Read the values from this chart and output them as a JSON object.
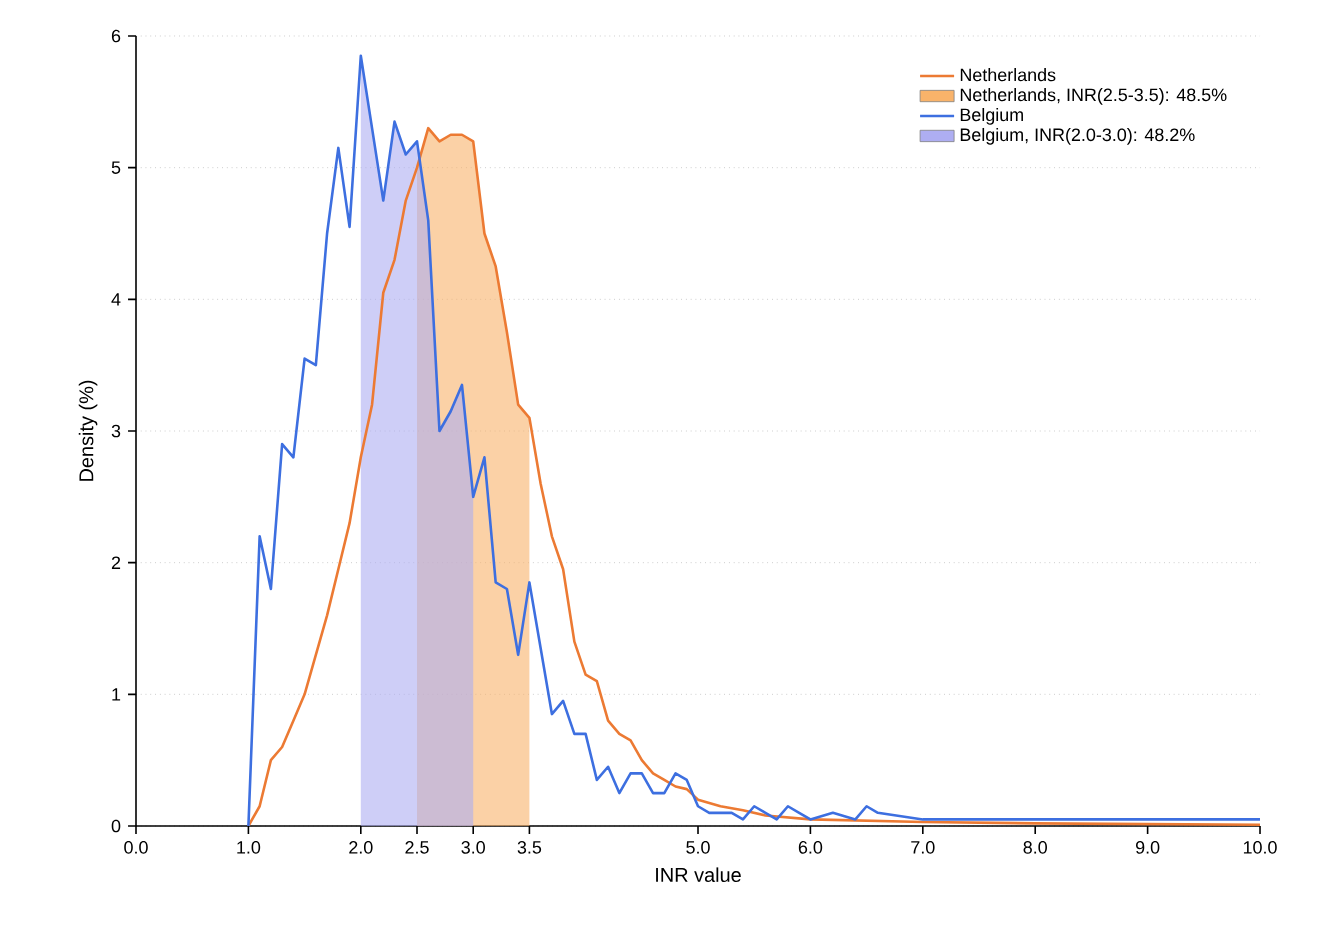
{
  "chart_data": {
    "type": "line",
    "xlabel": "INR value",
    "ylabel": "Density (%)",
    "xlim": [
      0,
      10
    ],
    "ylim": [
      0,
      6
    ],
    "xticks": [
      {
        "value": 0,
        "label": "0.0"
      },
      {
        "value": 1,
        "label": "1.0"
      },
      {
        "value": 2,
        "label": "2.0"
      },
      {
        "value": 2.5,
        "label": "2.5"
      },
      {
        "value": 3,
        "label": "3.0"
      },
      {
        "value": 3.5,
        "label": "3.5"
      },
      {
        "value": 5,
        "label": "5.0"
      },
      {
        "value": 6,
        "label": "6.0"
      },
      {
        "value": 7,
        "label": "7.0"
      },
      {
        "value": 8,
        "label": "8.0"
      },
      {
        "value": 9,
        "label": "9.0"
      },
      {
        "value": 10,
        "label": "10.0"
      }
    ],
    "yticks": [
      0,
      1,
      2,
      3,
      4,
      5,
      6
    ],
    "grid": "y",
    "legend": "top right",
    "series": [
      {
        "name": "Netherlands",
        "color": "#ec7a33",
        "x": [
          1.0,
          1.1,
          1.2,
          1.3,
          1.4,
          1.5,
          1.6,
          1.7,
          1.8,
          1.9,
          2.0,
          2.1,
          2.2,
          2.3,
          2.4,
          2.5,
          2.6,
          2.7,
          2.8,
          2.9,
          3.0,
          3.1,
          3.2,
          3.3,
          3.4,
          3.5,
          3.6,
          3.7,
          3.8,
          3.9,
          4.0,
          4.1,
          4.2,
          4.3,
          4.4,
          4.5,
          4.6,
          4.7,
          4.8,
          4.9,
          5.0,
          5.2,
          5.4,
          5.6,
          6.0,
          7.0,
          8.0,
          10.0
        ],
        "values": [
          0,
          0.15,
          0.5,
          0.6,
          0.8,
          1.0,
          1.3,
          1.6,
          1.95,
          2.3,
          2.8,
          3.2,
          4.05,
          4.3,
          4.75,
          5.0,
          5.3,
          5.2,
          5.25,
          5.25,
          5.2,
          4.5,
          4.25,
          3.75,
          3.2,
          3.1,
          2.6,
          2.2,
          1.95,
          1.4,
          1.15,
          1.1,
          0.8,
          0.7,
          0.65,
          0.5,
          0.4,
          0.35,
          0.3,
          0.28,
          0.2,
          0.15,
          0.12,
          0.08,
          0.05,
          0.03,
          0.02,
          0.01
        ]
      },
      {
        "name": "Netherlands, INR(2.5-3.5): 48.5%",
        "type": "area",
        "color": "#f9b36a",
        "x": [
          2.5,
          2.6,
          2.7,
          2.8,
          2.9,
          3.0,
          3.1,
          3.2,
          3.3,
          3.4,
          3.5
        ],
        "values": [
          5.0,
          5.3,
          5.2,
          5.25,
          5.25,
          5.2,
          4.5,
          4.25,
          3.75,
          3.2,
          3.1
        ]
      },
      {
        "name": "Belgium",
        "color": "#3d6fe0",
        "x": [
          1.0,
          1.1,
          1.2,
          1.3,
          1.4,
          1.5,
          1.6,
          1.7,
          1.8,
          1.9,
          2.0,
          2.1,
          2.2,
          2.3,
          2.4,
          2.5,
          2.6,
          2.7,
          2.8,
          2.9,
          3.0,
          3.1,
          3.2,
          3.3,
          3.4,
          3.5,
          3.6,
          3.7,
          3.8,
          3.9,
          4.0,
          4.1,
          4.2,
          4.3,
          4.4,
          4.5,
          4.6,
          4.7,
          4.8,
          4.9,
          5.0,
          5.1,
          5.2,
          5.3,
          5.4,
          5.5,
          5.6,
          5.7,
          5.8,
          5.9,
          6.0,
          6.2,
          6.4,
          6.5,
          6.6,
          7.0,
          7.5,
          10.0
        ],
        "values": [
          0,
          2.2,
          1.8,
          2.9,
          2.8,
          3.55,
          3.5,
          4.5,
          5.15,
          4.55,
          5.85,
          5.3,
          4.75,
          5.35,
          5.1,
          5.2,
          4.6,
          3.0,
          3.15,
          3.35,
          2.5,
          2.8,
          1.85,
          1.8,
          1.3,
          1.85,
          1.35,
          0.85,
          0.95,
          0.7,
          0.7,
          0.35,
          0.45,
          0.25,
          0.4,
          0.4,
          0.25,
          0.25,
          0.4,
          0.35,
          0.15,
          0.1,
          0.1,
          0.1,
          0.05,
          0.15,
          0.1,
          0.05,
          0.15,
          0.1,
          0.05,
          0.1,
          0.05,
          0.15,
          0.1,
          0.05,
          0.05,
          0.05
        ]
      },
      {
        "name": "Belgium, INR(2.0-3.0): 48.2%",
        "type": "area",
        "color": "#aeaef2",
        "x": [
          2.0,
          2.1,
          2.2,
          2.3,
          2.4,
          2.5,
          2.6,
          2.7,
          2.8,
          2.9,
          3.0
        ],
        "values": [
          5.85,
          5.3,
          4.75,
          5.35,
          5.1,
          5.2,
          4.6,
          3.0,
          3.15,
          3.35,
          2.5
        ]
      }
    ]
  }
}
